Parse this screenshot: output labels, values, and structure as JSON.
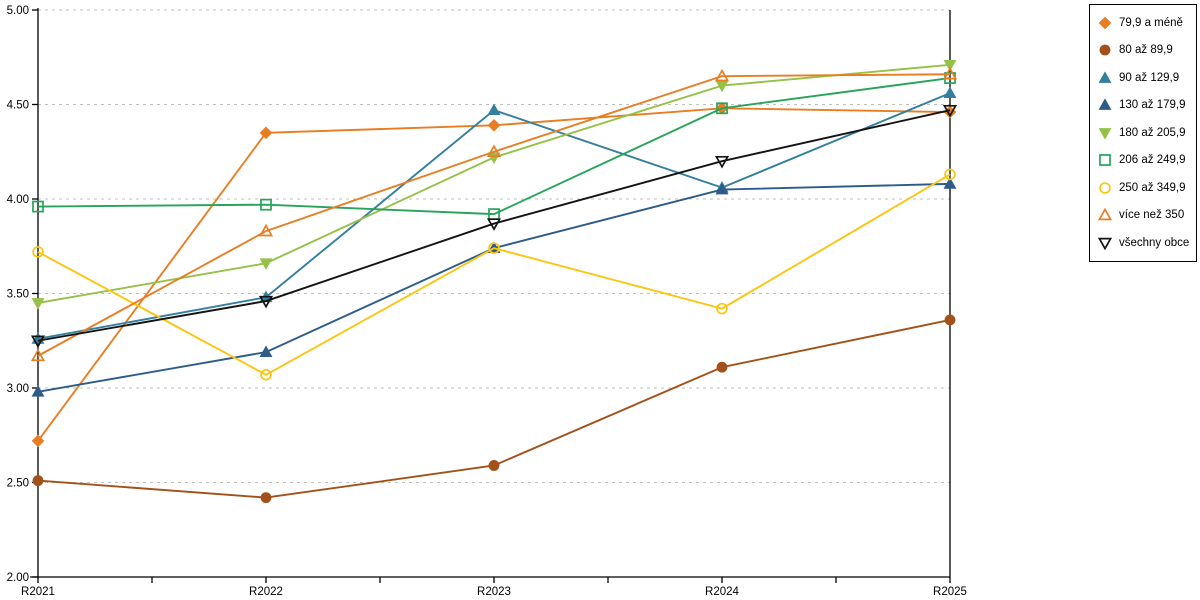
{
  "chart_data": {
    "type": "line",
    "title": "",
    "xlabel": "",
    "ylabel": "",
    "categories": [
      "R2021",
      "R2022",
      "R2023",
      "R2024",
      "R2025"
    ],
    "series": [
      {
        "name": "79,9 a méně",
        "color": "#e87d22",
        "marker": "diamond",
        "filled": true,
        "values": [
          2.72,
          4.35,
          4.39,
          4.48,
          4.46
        ]
      },
      {
        "name": "80 až 89,9",
        "color": "#a3511a",
        "marker": "circle",
        "filled": true,
        "values": [
          2.51,
          2.42,
          2.59,
          3.11,
          3.36
        ]
      },
      {
        "name": "90 až 129,9",
        "color": "#337f9d",
        "marker": "triangle-up",
        "filled": true,
        "values": [
          3.26,
          3.48,
          4.47,
          4.06,
          4.56
        ]
      },
      {
        "name": "130 až 179,9",
        "color": "#2e5c8a",
        "marker": "triangle-up",
        "filled": true,
        "values": [
          2.98,
          3.19,
          3.74,
          4.05,
          4.08
        ]
      },
      {
        "name": "180 až 205,9",
        "color": "#94c147",
        "marker": "triangle-down",
        "filled": true,
        "values": [
          3.45,
          3.66,
          4.22,
          4.6,
          4.71
        ]
      },
      {
        "name": "206 až 249,9",
        "color": "#27a45a",
        "marker": "square",
        "filled": false,
        "values": [
          3.96,
          3.97,
          3.92,
          4.48,
          4.64
        ]
      },
      {
        "name": "250 až 349,9",
        "color": "#fdc50f",
        "marker": "circle",
        "filled": false,
        "values": [
          3.72,
          3.07,
          3.74,
          3.42,
          4.13
        ]
      },
      {
        "name": "více než 350",
        "color": "#e87d22",
        "marker": "triangle-up",
        "filled": false,
        "values": [
          3.17,
          3.83,
          4.25,
          4.65,
          4.66
        ]
      },
      {
        "name": "všechny obce",
        "color": "#141414",
        "marker": "triangle-down",
        "filled": false,
        "values": [
          3.25,
          3.46,
          3.87,
          4.2,
          4.47
        ]
      }
    ],
    "ylim": [
      2.0,
      5.0
    ],
    "ytick_step": 0.5,
    "ytick_labels": [
      "2.00",
      "2.50",
      "3.00",
      "3.50",
      "4.00",
      "4.50",
      "5.00"
    ],
    "grid": "horizontal-dashed",
    "grid_color": "#bfbfbf",
    "axis_color": "#000000",
    "legend_position": "top-right"
  }
}
